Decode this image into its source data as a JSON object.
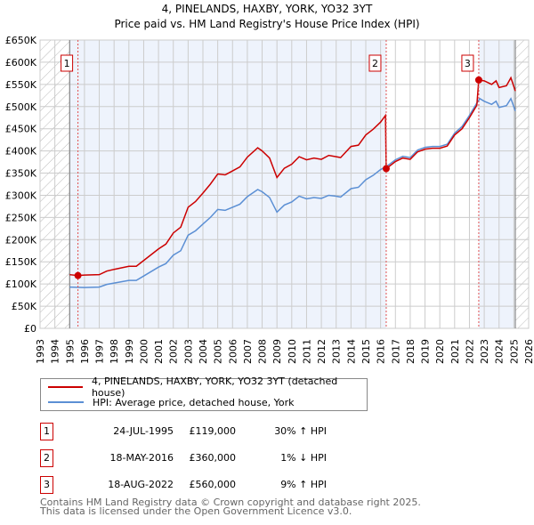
{
  "chart_data": {
    "type": "line",
    "title": "4, PINELANDS, HAXBY, YORK, YO32 3YT",
    "subtitle": "Price paid vs. HM Land Registry's House Price Index (HPI)",
    "xlim": [
      1993,
      2026
    ],
    "ylim": [
      0,
      650000
    ],
    "x_ticks": [
      1993,
      1994,
      1995,
      1996,
      1997,
      1998,
      1999,
      2000,
      2001,
      2002,
      2003,
      2004,
      2005,
      2006,
      2007,
      2008,
      2009,
      2010,
      2011,
      2012,
      2013,
      2014,
      2015,
      2016,
      2017,
      2018,
      2019,
      2020,
      2021,
      2022,
      2023,
      2024,
      2025,
      2026
    ],
    "y_ticks": [
      {
        "v": 0,
        "label": "£0"
      },
      {
        "v": 50000,
        "label": "£50K"
      },
      {
        "v": 100000,
        "label": "£100K"
      },
      {
        "v": 150000,
        "label": "£150K"
      },
      {
        "v": 200000,
        "label": "£200K"
      },
      {
        "v": 250000,
        "label": "£250K"
      },
      {
        "v": 300000,
        "label": "£300K"
      },
      {
        "v": 350000,
        "label": "£350K"
      },
      {
        "v": 400000,
        "label": "£400K"
      },
      {
        "v": 450000,
        "label": "£450K"
      },
      {
        "v": 500000,
        "label": "£500K"
      },
      {
        "v": 550000,
        "label": "£550K"
      },
      {
        "v": 600000,
        "label": "£600K"
      },
      {
        "v": 650000,
        "label": "£650K"
      }
    ],
    "grid": true,
    "data_range": [
      1995.0,
      2025.1
    ],
    "series": [
      {
        "name": "4, PINELANDS, HAXBY, YORK, YO32 3YT (detached house)",
        "color": "#cc0000",
        "x": [
          1995.0,
          1995.56,
          1996,
          1997,
          1997.5,
          1998,
          1999,
          1999.5,
          2000,
          2001,
          2001.5,
          2002,
          2002.5,
          2003,
          2003.5,
          2004,
          2004.5,
          2005,
          2005.5,
          2006,
          2006.5,
          2007,
          2007.7,
          2008,
          2008.5,
          2009,
          2009.5,
          2010,
          2010.5,
          2011,
          2011.5,
          2012,
          2012.5,
          2013,
          2013.3,
          2014,
          2014.5,
          2015,
          2015.5,
          2016,
          2016.33,
          2016.38,
          2017,
          2017.5,
          2018,
          2018.5,
          2019,
          2019.5,
          2020,
          2020.5,
          2021,
          2021.5,
          2022,
          2022.5,
          2022.63,
          2023,
          2023.5,
          2023.8,
          2024,
          2024.5,
          2024.8,
          2025.1
        ],
        "y": [
          121,
          119,
          120,
          121,
          129,
          133,
          140,
          140,
          153,
          179,
          190,
          215,
          228,
          273,
          286,
          305,
          325,
          348,
          346,
          355,
          364,
          386,
          407,
          400,
          384,
          340,
          361,
          370,
          387,
          380,
          384,
          381,
          390,
          387,
          385,
          410,
          413,
          436,
          449,
          465,
          480,
          360,
          376,
          384,
          381,
          398,
          404,
          406,
          406,
          411,
          436,
          450,
          475,
          503,
          560,
          558,
          550,
          558,
          543,
          547,
          565,
          535
        ]
      },
      {
        "name": "HPI: Average price, detached house, York",
        "color": "#5b8fd4",
        "x": [
          1995.0,
          1996,
          1997,
          1997.5,
          1998,
          1999,
          1999.5,
          2000,
          2001,
          2001.5,
          2002,
          2002.5,
          2003,
          2003.5,
          2004,
          2004.5,
          2005,
          2005.5,
          2006,
          2006.5,
          2007,
          2007.7,
          2008,
          2008.5,
          2009,
          2009.5,
          2010,
          2010.5,
          2011,
          2011.5,
          2012,
          2012.5,
          2013,
          2013.3,
          2014,
          2014.5,
          2015,
          2015.5,
          2016,
          2016.4,
          2017,
          2017.5,
          2018,
          2018.5,
          2019,
          2019.5,
          2020,
          2020.5,
          2021,
          2021.5,
          2022,
          2022.5,
          2022.7,
          2023,
          2023.5,
          2023.8,
          2024,
          2024.5,
          2024.8,
          2025.1
        ],
        "y": [
          93,
          92,
          93,
          99,
          102,
          108,
          108,
          118,
          138,
          146,
          165,
          175,
          210,
          220,
          235,
          250,
          268,
          266,
          273,
          280,
          297,
          313,
          308,
          295,
          262,
          278,
          285,
          298,
          292,
          295,
          293,
          300,
          298,
          296,
          315,
          318,
          335,
          345,
          358,
          365,
          380,
          388,
          385,
          402,
          408,
          410,
          410,
          415,
          440,
          455,
          480,
          508,
          518,
          512,
          505,
          512,
          498,
          502,
          518,
          490
        ]
      }
    ],
    "y_units": "thousands GBP",
    "sales": [
      {
        "id": "1",
        "x": 1995.56,
        "y": 119,
        "date": "24-JUL-1995",
        "price": "£119,000",
        "hpi": "30% ↑ HPI"
      },
      {
        "id": "2",
        "x": 2016.38,
        "y": 360,
        "date": "18-MAY-2016",
        "price": "£360,000",
        "hpi": "1% ↓ HPI"
      },
      {
        "id": "3",
        "x": 2022.63,
        "y": 560,
        "date": "18-AUG-2022",
        "price": "£560,000",
        "hpi": "9% ↑ HPI"
      }
    ],
    "legend_position": "bottom",
    "footer": [
      "Contains HM Land Registry data © Crown copyright and database right 2025.",
      "This data is licensed under the Open Government Licence v3.0."
    ]
  }
}
